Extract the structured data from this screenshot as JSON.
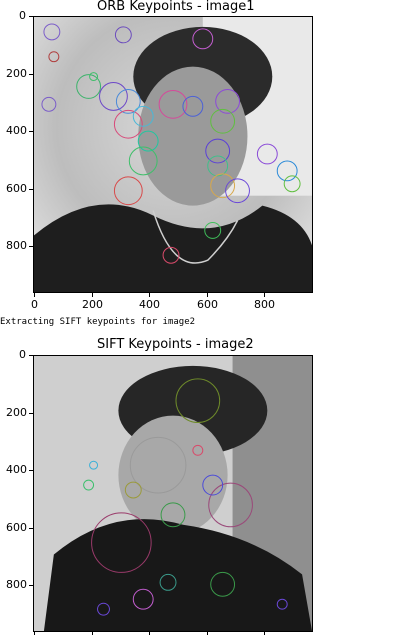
{
  "plots": [
    {
      "id": "orb",
      "title": "ORB Keypoints - image1",
      "image_description_hint": "grayscale selfie of a young man with ORB keypoint circles overlaid",
      "x_ticks": [
        "0",
        "200",
        "400",
        "600",
        "800"
      ],
      "y_ticks": [
        "0",
        "200",
        "400",
        "600",
        "800"
      ]
    },
    {
      "id": "sift",
      "title": "SIFT Keypoints - image2",
      "image_description_hint": "grayscale selfie of a young man in profile with SIFT keypoint circles overlaid",
      "x_ticks": [],
      "y_ticks": [
        "0",
        "200",
        "400",
        "600",
        "800"
      ]
    }
  ],
  "console": {
    "log_text": "Extracting SIFT keypoints for image2"
  }
}
